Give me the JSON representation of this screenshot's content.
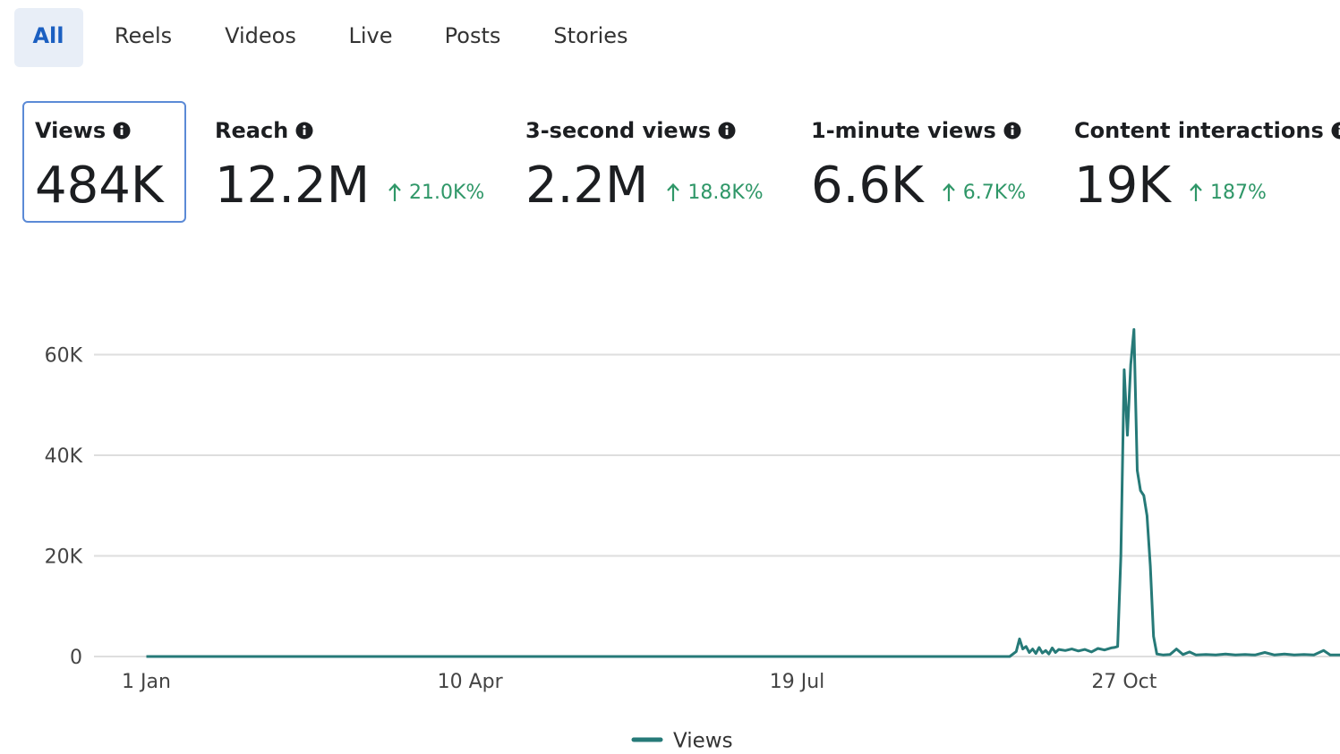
{
  "tabs": [
    "All",
    "Reels",
    "Videos",
    "Live",
    "Posts",
    "Stories"
  ],
  "metrics": [
    {
      "label": "Views",
      "value": "484K"
    },
    {
      "label": "Reach",
      "value": "12.2M",
      "change": "21.0K%"
    },
    {
      "label": "3-second views",
      "value": "2.2M",
      "change": "18.8K%"
    },
    {
      "label": "1-minute views",
      "value": "6.6K",
      "change": "6.7K%"
    },
    {
      "label": "Content interactions",
      "value": "19K",
      "change": "187%"
    }
  ],
  "chart_data": {
    "type": "line",
    "x": [
      0,
      264,
      266,
      267,
      268,
      269,
      270,
      271,
      272,
      273,
      274,
      275,
      276,
      277,
      278,
      279,
      281,
      283,
      285,
      287,
      289,
      291,
      293,
      295,
      296,
      297,
      298,
      299,
      300,
      301,
      302,
      303,
      304,
      305,
      306,
      307,
      308,
      309,
      311,
      313,
      315,
      317,
      319,
      321,
      324,
      327,
      330,
      333,
      336,
      339,
      342,
      345,
      348,
      351,
      354,
      357,
      360,
      362,
      365
    ],
    "series": [
      {
        "name": "Views",
        "color": "#267a78",
        "values": [
          0,
          0,
          1000,
          3500,
          1500,
          2000,
          800,
          1500,
          600,
          1800,
          700,
          1200,
          500,
          1700,
          800,
          1400,
          1200,
          1500,
          1100,
          1400,
          900,
          1600,
          1300,
          1700,
          1800,
          2000,
          20000,
          57000,
          44000,
          58000,
          65000,
          37000,
          33000,
          32000,
          28000,
          18000,
          4000,
          500,
          300,
          400,
          1500,
          400,
          900,
          300,
          400,
          300,
          500,
          300,
          400,
          300,
          800,
          300,
          500,
          300,
          400,
          300,
          1200,
          300,
          300
        ]
      }
    ],
    "xlim": [
      -16,
      365
    ],
    "xticks": [
      {
        "value": 0,
        "label": "1 Jan"
      },
      {
        "value": 99,
        "label": "10 Apr"
      },
      {
        "value": 199,
        "label": "19 Jul"
      },
      {
        "value": 299,
        "label": "27 Oct"
      }
    ],
    "ylim": [
      0,
      66500
    ],
    "yticks": [
      0,
      {
        "value": 20000,
        "label": "20K"
      },
      {
        "value": 40000,
        "label": "40K"
      },
      {
        "value": 60000,
        "label": "60K"
      }
    ],
    "grid": true
  }
}
